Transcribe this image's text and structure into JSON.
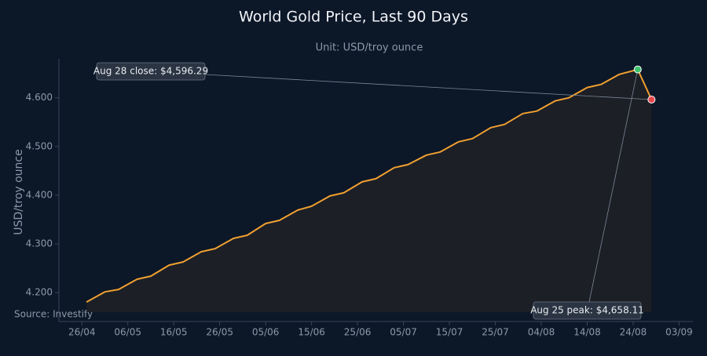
{
  "chart_data": {
    "type": "line",
    "title": "World Gold Price, Last 90 Days",
    "subtitle": "Unit: USD/troy ounce",
    "y_label": "USD/troy ounce",
    "source": "Source: Investify",
    "x": [
      "27/04",
      "01/05",
      "04/05",
      "08/05",
      "11/05",
      "15/05",
      "18/05",
      "22/05",
      "25/05",
      "29/05",
      "01/06",
      "05/06",
      "08/06",
      "12/06",
      "15/06",
      "19/06",
      "22/06",
      "26/06",
      "29/06",
      "03/07",
      "06/07",
      "10/07",
      "13/07",
      "17/07",
      "20/07",
      "24/07",
      "27/07",
      "31/07",
      "03/08",
      "07/08",
      "10/08",
      "14/08",
      "17/08",
      "21/08",
      "25/08",
      "28/08"
    ],
    "series": [
      {
        "name": "Gold",
        "color": "#f0a030",
        "values": [
          4180.6,
          4201.6,
          4206.5,
          4227.4,
          4233.9,
          4256.5,
          4262.9,
          4283.9,
          4290.3,
          4311.3,
          4317.7,
          4341.9,
          4348.4,
          4369.4,
          4377.4,
          4398.4,
          4404.8,
          4427.4,
          4433.9,
          4456.5,
          4462.9,
          4482.3,
          4488.7,
          4509.7,
          4516.1,
          4538.7,
          4545.2,
          4567.7,
          4572.6,
          4593.5,
          4600.0,
          4621.0,
          4627.4,
          4648.1,
          4658.11,
          4596.29
        ]
      }
    ],
    "xlim": [
      "21/04",
      "06/09"
    ],
    "xticks": [
      "26/04",
      "06/05",
      "16/05",
      "26/05",
      "05/06",
      "15/06",
      "25/06",
      "05/07",
      "15/07",
      "25/07",
      "04/08",
      "14/08",
      "24/08",
      "03/09"
    ],
    "ylim": [
      4160,
      4680
    ],
    "yticks": [
      {
        "value": 4200,
        "label": "4.200"
      },
      {
        "value": 4300,
        "label": "4.300"
      },
      {
        "value": 4400,
        "label": "4.400"
      },
      {
        "value": 4500,
        "label": "4.500"
      },
      {
        "value": 4600,
        "label": "4.600"
      }
    ],
    "annotations": [
      "Aug 28 close: $4,596.29",
      "Aug 25 peak: $4,658.11"
    ],
    "marker_colors": {
      "close": "#e5484d",
      "peak": "#3ec46d"
    },
    "grid": false
  }
}
